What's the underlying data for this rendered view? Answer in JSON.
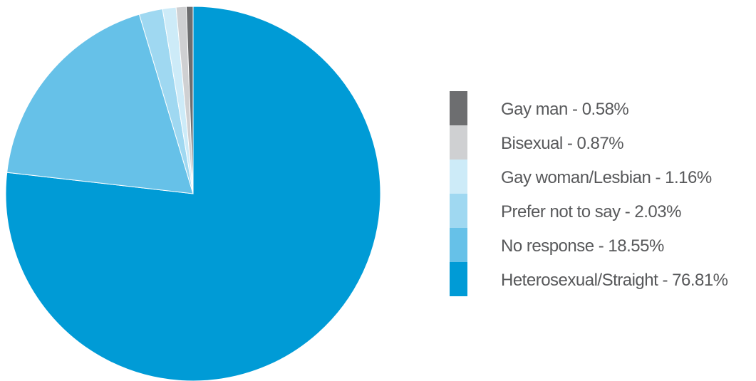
{
  "chart_data": {
    "type": "pie",
    "title": "",
    "slices": [
      {
        "label": "Heterosexual/Straight",
        "legend_text": "Heterosexual/Straight  -  76.81%",
        "value": 76.81,
        "color": "#009bd6"
      },
      {
        "label": "No response",
        "legend_text": "No response  -  18.55%",
        "value": 18.55,
        "color": "#66c1e8"
      },
      {
        "label": "Prefer not to say",
        "legend_text": "Prefer not to say  -  2.03%",
        "value": 2.03,
        "color": "#9fd8f1"
      },
      {
        "label": "Gay woman/Lesbian",
        "legend_text": "Gay woman/Lesbian  -  1.16%",
        "value": 1.16,
        "color": "#cdebf8"
      },
      {
        "label": "Bisexual",
        "legend_text": "Bisexual  -  0.87%",
        "value": 0.87,
        "color": "#cfd0d2"
      },
      {
        "label": "Gay man",
        "legend_text": "Gay man  -  0.58%",
        "value": 0.58,
        "color": "#6d6e70"
      }
    ],
    "legend_order": [
      "Gay man",
      "Bisexual",
      "Gay woman/Lesbian",
      "Prefer not to say",
      "No response",
      "Heterosexual/Straight"
    ],
    "legend_position": "right"
  }
}
